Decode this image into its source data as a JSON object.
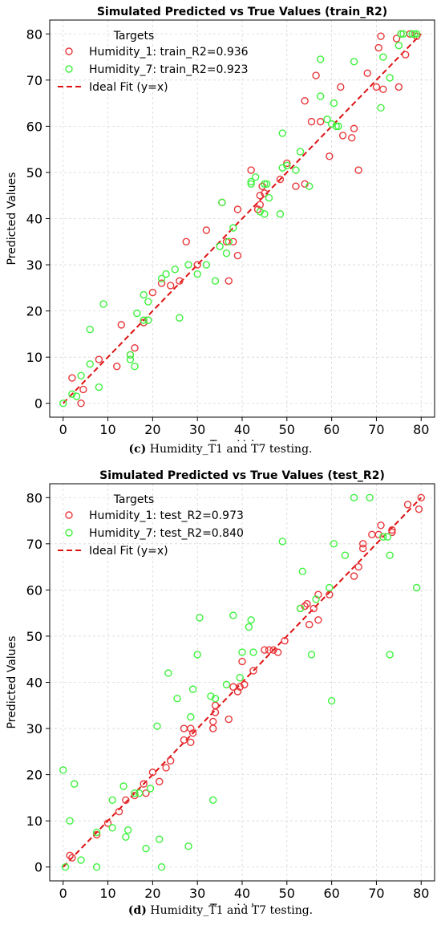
{
  "chart_data": [
    {
      "type": "scatter",
      "title": "Simulated Predicted vs True Values (train_R2)",
      "xlabel": "True Values",
      "ylabel": "Predicted Values",
      "xlim": [
        -3,
        83
      ],
      "ylim": [
        -3,
        83
      ],
      "xticks": [
        "0",
        "10",
        "20",
        "30",
        "40",
        "50",
        "60",
        "70",
        "80"
      ],
      "yticks": [
        "0",
        "10",
        "20",
        "30",
        "40",
        "50",
        "60",
        "70",
        "80"
      ],
      "grid": true,
      "legend_title": "Targets",
      "legend_position": "upper-left",
      "ideal_fit_label": "Ideal Fit (y=x)",
      "colors": {
        "humidity_1": "#e8363a",
        "humidity_7": "#3ef23e",
        "ideal": "#dd1111"
      },
      "series": [
        {
          "name": "Humidity_1: train_R2=0.936",
          "points": [
            [
              2,
              5.5
            ],
            [
              4,
              0
            ],
            [
              4.5,
              3
            ],
            [
              8,
              9.5
            ],
            [
              12,
              8
            ],
            [
              13,
              17
            ],
            [
              15,
              10.5
            ],
            [
              16,
              12
            ],
            [
              18,
              17.5
            ],
            [
              20,
              24
            ],
            [
              22,
              26
            ],
            [
              24,
              25.5
            ],
            [
              26,
              26.5
            ],
            [
              27.5,
              35
            ],
            [
              30,
              30
            ],
            [
              32,
              37.5
            ],
            [
              35.5,
              43.5
            ],
            [
              36.5,
              35
            ],
            [
              37,
              26.5
            ],
            [
              38,
              35
            ],
            [
              39,
              32
            ],
            [
              39,
              42
            ],
            [
              42,
              50.5
            ],
            [
              43.5,
              42
            ],
            [
              44,
              43
            ],
            [
              44,
              45
            ],
            [
              44.5,
              47
            ],
            [
              45,
              45.5
            ],
            [
              48.5,
              48.5
            ],
            [
              50,
              52
            ],
            [
              52,
              47
            ],
            [
              54,
              47.5
            ],
            [
              54,
              65.5
            ],
            [
              55.5,
              61
            ],
            [
              56.5,
              71
            ],
            [
              57.5,
              61
            ],
            [
              59.5,
              53.5
            ],
            [
              62,
              68.5
            ],
            [
              62.5,
              58
            ],
            [
              64.5,
              57.5
            ],
            [
              65,
              59.5
            ],
            [
              66,
              50.5
            ],
            [
              68,
              71.5
            ],
            [
              70,
              68.5
            ],
            [
              70.5,
              77
            ],
            [
              71,
              79.5
            ],
            [
              71.5,
              68
            ],
            [
              74.5,
              79
            ],
            [
              75,
              68.5
            ],
            [
              75.5,
              80
            ],
            [
              76.5,
              75.5
            ],
            [
              77.5,
              80
            ],
            [
              79,
              79.5
            ]
          ]
        },
        {
          "name": "Humidity_7: train_R2=0.923",
          "points": [
            [
              0,
              0
            ],
            [
              2,
              2
            ],
            [
              3,
              1.5
            ],
            [
              4,
              6
            ],
            [
              6,
              8.5
            ],
            [
              6,
              16
            ],
            [
              8,
              3.5
            ],
            [
              9,
              21.5
            ],
            [
              15,
              9.5
            ],
            [
              15,
              10.5
            ],
            [
              16,
              8
            ],
            [
              16.5,
              19.5
            ],
            [
              18,
              23.5
            ],
            [
              18,
              18
            ],
            [
              19,
              22
            ],
            [
              19,
              18
            ],
            [
              22,
              27
            ],
            [
              23,
              28
            ],
            [
              25,
              29
            ],
            [
              26,
              18.5
            ],
            [
              28,
              30
            ],
            [
              30,
              28
            ],
            [
              32,
              30
            ],
            [
              34,
              26.5
            ],
            [
              35,
              34
            ],
            [
              35.5,
              43.5
            ],
            [
              36.5,
              32.5
            ],
            [
              37,
              35
            ],
            [
              38,
              38
            ],
            [
              42,
              47.5
            ],
            [
              42,
              48
            ],
            [
              43,
              49
            ],
            [
              44,
              41.5
            ],
            [
              45,
              47.5
            ],
            [
              45,
              41
            ],
            [
              45.5,
              47.5
            ],
            [
              46,
              44.5
            ],
            [
              48.5,
              41
            ],
            [
              49,
              58.5
            ],
            [
              49,
              51
            ],
            [
              50,
              51.5
            ],
            [
              52,
              50.5
            ],
            [
              53,
              54.5
            ],
            [
              55,
              47
            ],
            [
              57.5,
              74.5
            ],
            [
              57.5,
              66.5
            ],
            [
              59,
              61.5
            ],
            [
              60,
              60.5
            ],
            [
              60.5,
              65
            ],
            [
              61,
              60
            ],
            [
              61.5,
              60
            ],
            [
              65,
              74
            ],
            [
              71,
              64
            ],
            [
              71.5,
              75
            ],
            [
              73,
              70.5
            ],
            [
              75,
              77.5
            ],
            [
              75.5,
              80
            ],
            [
              76,
              80
            ],
            [
              78,
              80
            ],
            [
              78.5,
              80
            ],
            [
              79,
              80
            ]
          ]
        }
      ],
      "caption_label": "(c)",
      "caption_text": " Humidity_T1 and T7 testing."
    },
    {
      "type": "scatter",
      "title": "Simulated Predicted vs True Values (test_R2)",
      "xlabel": "True Values",
      "ylabel": "Predicted Values",
      "xlim": [
        -3,
        83
      ],
      "ylim": [
        -3,
        83
      ],
      "xticks": [
        "0",
        "10",
        "20",
        "30",
        "40",
        "50",
        "60",
        "70",
        "80"
      ],
      "yticks": [
        "0",
        "10",
        "20",
        "30",
        "40",
        "50",
        "60",
        "70",
        "80"
      ],
      "grid": true,
      "legend_title": "Targets",
      "legend_position": "upper-left",
      "ideal_fit_label": "Ideal Fit (y=x)",
      "colors": {
        "humidity_1": "#e8363a",
        "humidity_7": "#3ef23e",
        "ideal": "#dd1111"
      },
      "series": [
        {
          "name": "Humidity_1: test_R2=0.973",
          "points": [
            [
              1.5,
              2.5
            ],
            [
              2,
              2
            ],
            [
              7.5,
              7
            ],
            [
              10,
              9.5
            ],
            [
              12.5,
              12
            ],
            [
              14,
              14.5
            ],
            [
              16,
              15.5
            ],
            [
              18,
              18
            ],
            [
              18.5,
              16
            ],
            [
              20,
              20.5
            ],
            [
              21.5,
              18.5
            ],
            [
              23,
              21.5
            ],
            [
              24,
              23
            ],
            [
              27,
              27.5
            ],
            [
              27,
              30
            ],
            [
              28.5,
              27
            ],
            [
              28.5,
              30
            ],
            [
              29,
              29
            ],
            [
              33.5,
              30
            ],
            [
              33.5,
              31.5
            ],
            [
              34,
              33.5
            ],
            [
              34,
              35
            ],
            [
              37,
              32
            ],
            [
              38,
              39
            ],
            [
              39,
              38
            ],
            [
              39.5,
              39
            ],
            [
              40,
              44.5
            ],
            [
              40.5,
              39.5
            ],
            [
              42.5,
              42.5
            ],
            [
              45,
              47
            ],
            [
              46,
              47
            ],
            [
              47,
              47
            ],
            [
              48,
              46.5
            ],
            [
              49.5,
              49
            ],
            [
              53,
              56
            ],
            [
              54,
              56.5
            ],
            [
              54.5,
              57
            ],
            [
              55,
              52.5
            ],
            [
              56,
              56
            ],
            [
              57,
              53.5
            ],
            [
              57,
              59
            ],
            [
              59.5,
              59
            ],
            [
              65,
              63
            ],
            [
              66,
              65
            ],
            [
              67,
              69
            ],
            [
              67,
              70
            ],
            [
              69,
              72
            ],
            [
              70.5,
              72
            ],
            [
              71,
              74
            ],
            [
              73.5,
              72.5
            ],
            [
              73.5,
              73
            ],
            [
              77,
              78.5
            ],
            [
              79.5,
              77.5
            ],
            [
              80,
              80
            ]
          ]
        },
        {
          "name": "Humidity_7: test_R2=0.840",
          "points": [
            [
              0,
              21
            ],
            [
              0.5,
              0
            ],
            [
              1.5,
              10
            ],
            [
              2.5,
              18
            ],
            [
              4,
              1.5
            ],
            [
              7.5,
              7.5
            ],
            [
              7.5,
              0
            ],
            [
              11,
              14.5
            ],
            [
              11,
              8.5
            ],
            [
              13.5,
              17.5
            ],
            [
              14,
              6.5
            ],
            [
              14.5,
              8
            ],
            [
              16,
              16
            ],
            [
              17,
              16
            ],
            [
              18.5,
              4
            ],
            [
              19.5,
              17
            ],
            [
              21,
              30.5
            ],
            [
              21.5,
              6
            ],
            [
              22,
              0
            ],
            [
              23.5,
              42
            ],
            [
              25.5,
              36.5
            ],
            [
              28,
              4.5
            ],
            [
              28.5,
              32.5
            ],
            [
              29,
              38.5
            ],
            [
              30,
              46
            ],
            [
              30.5,
              54
            ],
            [
              33,
              37
            ],
            [
              33.5,
              14.5
            ],
            [
              34,
              36.5
            ],
            [
              36.5,
              39.5
            ],
            [
              38,
              54.5
            ],
            [
              39.5,
              41
            ],
            [
              40,
              46.5
            ],
            [
              41.5,
              52
            ],
            [
              42,
              53.5
            ],
            [
              42.5,
              46.5
            ],
            [
              49,
              70.5
            ],
            [
              53,
              56
            ],
            [
              53.5,
              64
            ],
            [
              55.5,
              46
            ],
            [
              56.5,
              58
            ],
            [
              59.5,
              60.5
            ],
            [
              60,
              36
            ],
            [
              60.5,
              70
            ],
            [
              63,
              67.5
            ],
            [
              65,
              80
            ],
            [
              68.5,
              80
            ],
            [
              71.5,
              71.5
            ],
            [
              72.5,
              71.5
            ],
            [
              73,
              67.5
            ],
            [
              73,
              46
            ],
            [
              79,
              60.5
            ]
          ]
        }
      ],
      "caption_label": "(d)",
      "caption_text": " Humidity_T1 and T7 testing."
    }
  ]
}
